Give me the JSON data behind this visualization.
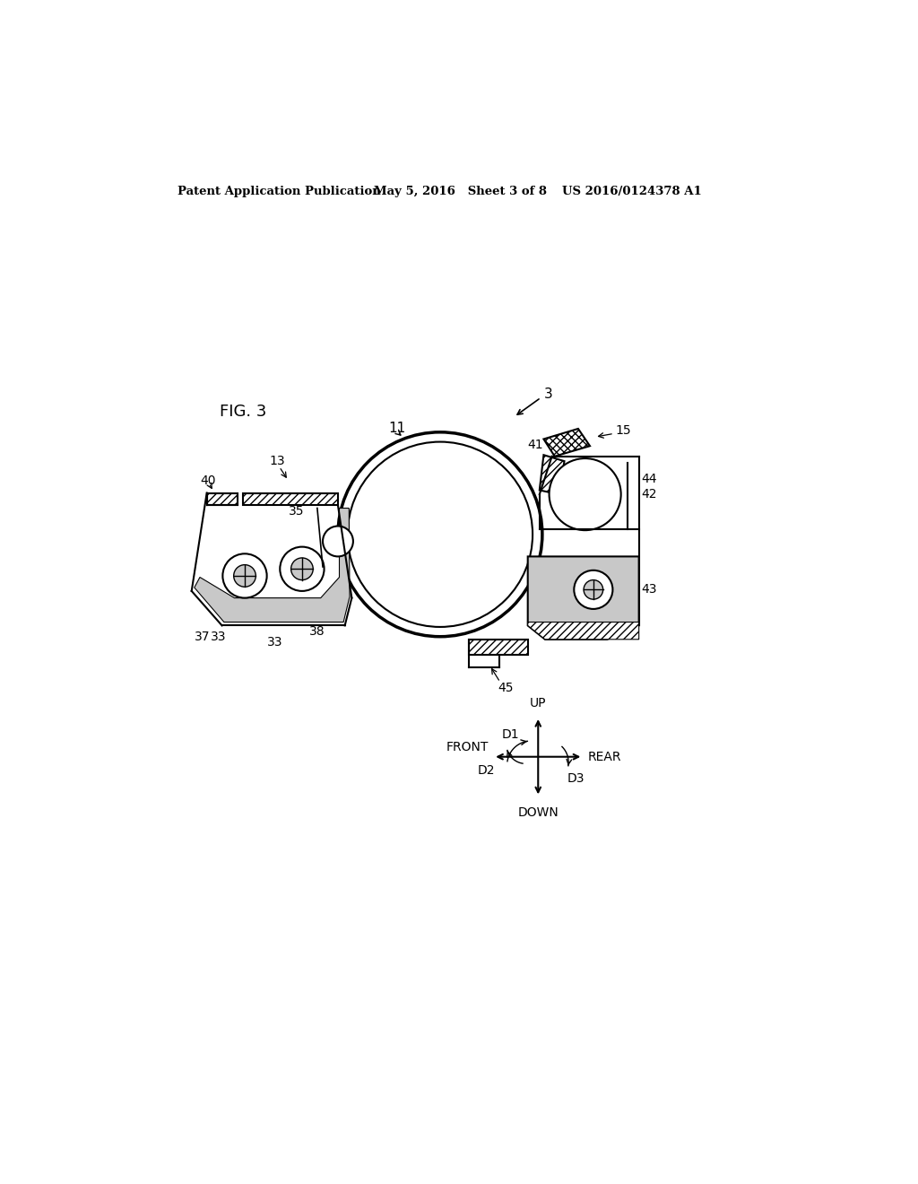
{
  "header_left": "Patent Application Publication",
  "header_mid": "May 5, 2016   Sheet 3 of 8",
  "header_right": "US 2016/0124378 A1",
  "fig_label": "FIG. 3",
  "background_color": "#ffffff",
  "line_color": "#000000",
  "gray_fill": "#c8c8c8",
  "hatch_pattern": "////",
  "hatch_pattern2": "xxxx"
}
